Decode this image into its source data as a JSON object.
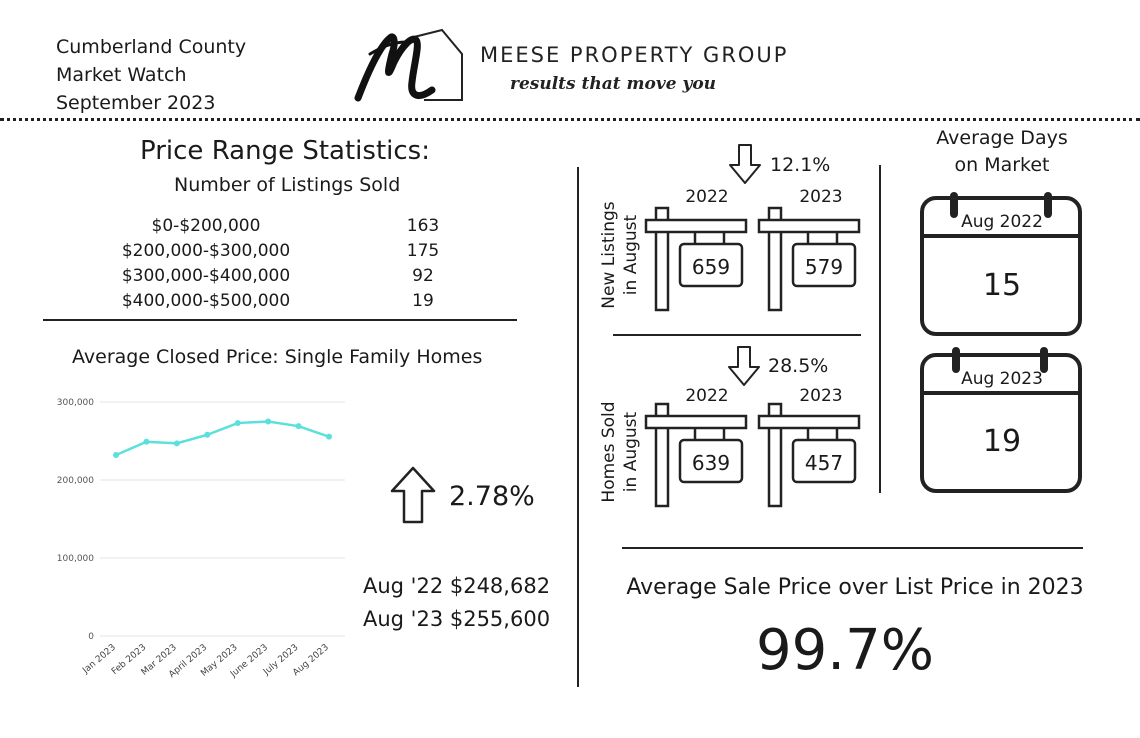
{
  "header": {
    "line1": "Cumberland County",
    "line2": "Market Watch",
    "line3": "September 2023",
    "brand": "MEESE PROPERTY GROUP",
    "tagline": "results that move you",
    "logo_letter": "M"
  },
  "price_range": {
    "title": "Price Range Statistics:",
    "subtitle": "Number of Listings Sold",
    "rows": [
      {
        "range": "$0-$200,000",
        "count": "163"
      },
      {
        "range": "$200,000-$300,000",
        "count": "175"
      },
      {
        "range": "$300,000-$400,000",
        "count": "92"
      },
      {
        "range": "$400,000-$500,000",
        "count": "19"
      }
    ]
  },
  "closed_price": {
    "title": "Average Closed Price: Single Family Homes",
    "change": "2.78%",
    "aug22": "Aug '22 $248,682",
    "aug23": "Aug '23 $255,600"
  },
  "chart_data": {
    "type": "line",
    "categories": [
      "Jan 2023",
      "Feb 2023",
      "Mar 2023",
      "April 2023",
      "May 2023",
      "June 2023",
      "July 2023",
      "Aug 2023"
    ],
    "values": [
      232000,
      249000,
      247000,
      258000,
      273000,
      275000,
      269000,
      255600
    ],
    "ylim": [
      0,
      300000
    ],
    "yticks": [
      "0",
      "100,000",
      "200,000",
      "300,000"
    ],
    "ytick_values": [
      0,
      100000,
      200000,
      300000
    ],
    "grid": true,
    "line_color": "#5ce0dc",
    "title": "",
    "xlabel": "",
    "ylabel": ""
  },
  "new_listings": {
    "label_line1": "New Listings",
    "label_line2": "in August",
    "change": "12.1%",
    "year1": "2022",
    "value1": "659",
    "year2": "2023",
    "value2": "579"
  },
  "homes_sold": {
    "label_line1": "Homes Sold",
    "label_line2": "in August",
    "change": "28.5%",
    "year1": "2022",
    "value1": "639",
    "year2": "2023",
    "value2": "457"
  },
  "days_on_market": {
    "title_line1": "Average Days",
    "title_line2": "on Market",
    "cal1_label": "Aug 2022",
    "cal1_value": "15",
    "cal2_label": "Aug 2023",
    "cal2_value": "19"
  },
  "sale_over_list": {
    "title": "Average Sale Price over List Price in 2023",
    "value": "99.7%"
  },
  "icons": [
    "logo-m-house-icon",
    "arrow-down-icon",
    "arrow-up-icon",
    "for-sale-sign-icon",
    "calendar-icon"
  ]
}
